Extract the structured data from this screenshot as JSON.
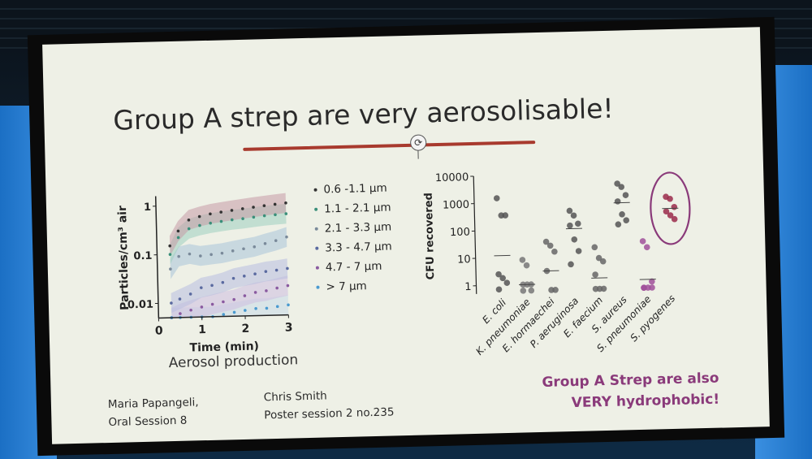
{
  "slide": {
    "title": "Group A strep are very aerosolisable!",
    "caption": "Aerosol production",
    "author1": {
      "name": "Maria Papangeli,",
      "session": "Oral Session 8"
    },
    "author2": {
      "name": "Chris Smith",
      "session": "Poster session 2 no.235"
    },
    "remark_line1": "Group A Strep are also",
    "remark_line2": "VERY hydrophobic!"
  },
  "chart_data": [
    {
      "type": "line",
      "title": "",
      "xlabel": "Time (min)",
      "ylabel": "Particles/cm³ air",
      "xlim": [
        0,
        3
      ],
      "ylim": [
        0.005,
        1.6
      ],
      "yscale": "log",
      "xticks": [
        "0",
        "1",
        "2",
        "3"
      ],
      "yticks": [
        "0.01",
        "0.1",
        "1"
      ],
      "legend_position": "right",
      "x": [
        0.3,
        0.5,
        0.75,
        1.0,
        1.25,
        1.5,
        1.75,
        2.0,
        2.25,
        2.5,
        2.75,
        3.0
      ],
      "series": [
        {
          "name": "0.6 -1.1 µm",
          "color": "#333333",
          "band": "#c79aa5",
          "values": [
            0.15,
            0.3,
            0.5,
            0.58,
            0.65,
            0.7,
            0.75,
            0.8,
            0.85,
            0.9,
            0.95,
            1.0
          ]
        },
        {
          "name": "1.1 - 2.1 µm",
          "color": "#3a8f7a",
          "band": "#9fcfc0",
          "values": [
            0.1,
            0.22,
            0.33,
            0.38,
            0.42,
            0.45,
            0.48,
            0.5,
            0.53,
            0.56,
            0.58,
            0.6
          ]
        },
        {
          "name": "2.1 - 3.3 µm",
          "color": "#7a8a9a",
          "band": "#a9c4d8",
          "values": [
            0.05,
            0.09,
            0.1,
            0.09,
            0.095,
            0.1,
            0.11,
            0.12,
            0.13,
            0.15,
            0.17,
            0.2
          ]
        },
        {
          "name": "3.3 - 4.7 µm",
          "color": "#5a6aa0",
          "band": "#b8bde0",
          "values": [
            0.01,
            0.012,
            0.015,
            0.02,
            0.022,
            0.025,
            0.03,
            0.033,
            0.036,
            0.04,
            0.042,
            0.045
          ]
        },
        {
          "name": "4.7 - 7 µm",
          "color": "#8a5aa0",
          "band": "#cdbde0",
          "values": [
            0.005,
            0.006,
            0.007,
            0.008,
            0.009,
            0.01,
            0.011,
            0.013,
            0.015,
            0.016,
            0.018,
            0.02
          ]
        },
        {
          "name": "> 7 µm",
          "color": "#4a9ad0",
          "band": "#c8dbe8",
          "values": [
            0.005,
            0.005,
            0.005,
            0.005,
            0.005,
            0.0055,
            0.006,
            0.0065,
            0.007,
            0.007,
            0.0075,
            0.008
          ]
        }
      ]
    },
    {
      "type": "scatter",
      "title": "",
      "xlabel": "",
      "ylabel": "CFU recovered",
      "yscale": "log",
      "ylim": [
        0.5,
        10000
      ],
      "yticks": [
        "1",
        "10",
        "100",
        "1000",
        "10000"
      ],
      "categories": [
        "E. coli",
        "K. pneumoniae",
        "E. hormaechei",
        "P. aeruginosa",
        "E. faecium",
        "S. aureus",
        "S. pneumoniae",
        "S. pyogenes"
      ],
      "series": [
        {
          "name": "E. coli",
          "values": [
            1500,
            350,
            350,
            2.5,
            1.8,
            1.2,
            0.7
          ],
          "mean": 12,
          "color": "#555555"
        },
        {
          "name": "K. pneumoniae",
          "values": [
            8,
            5,
            1,
            1,
            1,
            0.6,
            0.6
          ],
          "mean": 1,
          "color": "#777777"
        },
        {
          "name": "E. hormaechei",
          "values": [
            35,
            25,
            15,
            3,
            0.6,
            0.6
          ],
          "mean": 3,
          "color": "#666666"
        },
        {
          "name": "P. aeruginosa",
          "values": [
            450,
            300,
            150,
            130,
            40,
            15,
            5
          ],
          "mean": 100,
          "color": "#555555"
        },
        {
          "name": "E. faecium",
          "values": [
            20,
            8,
            6,
            2,
            0.6,
            0.6,
            0.6
          ],
          "mean": 1.5,
          "color": "#666666"
        },
        {
          "name": "S. aureus",
          "values": [
            4000,
            3000,
            1500,
            900,
            300,
            180,
            130
          ],
          "mean": 800,
          "color": "#555555"
        },
        {
          "name": "S. pneumoniae",
          "values": [
            30,
            18,
            1,
            0.6,
            0.6,
            0.6,
            0.6
          ],
          "mean": 1.2,
          "color": "#a0509a"
        },
        {
          "name": "S. pyogenes",
          "values": [
            1200,
            1000,
            500,
            350,
            250,
            180
          ],
          "mean": 450,
          "color": "#9a2a4a"
        }
      ],
      "highlight": "S. pyogenes",
      "highlight_color": "#8a3a7a"
    }
  ]
}
